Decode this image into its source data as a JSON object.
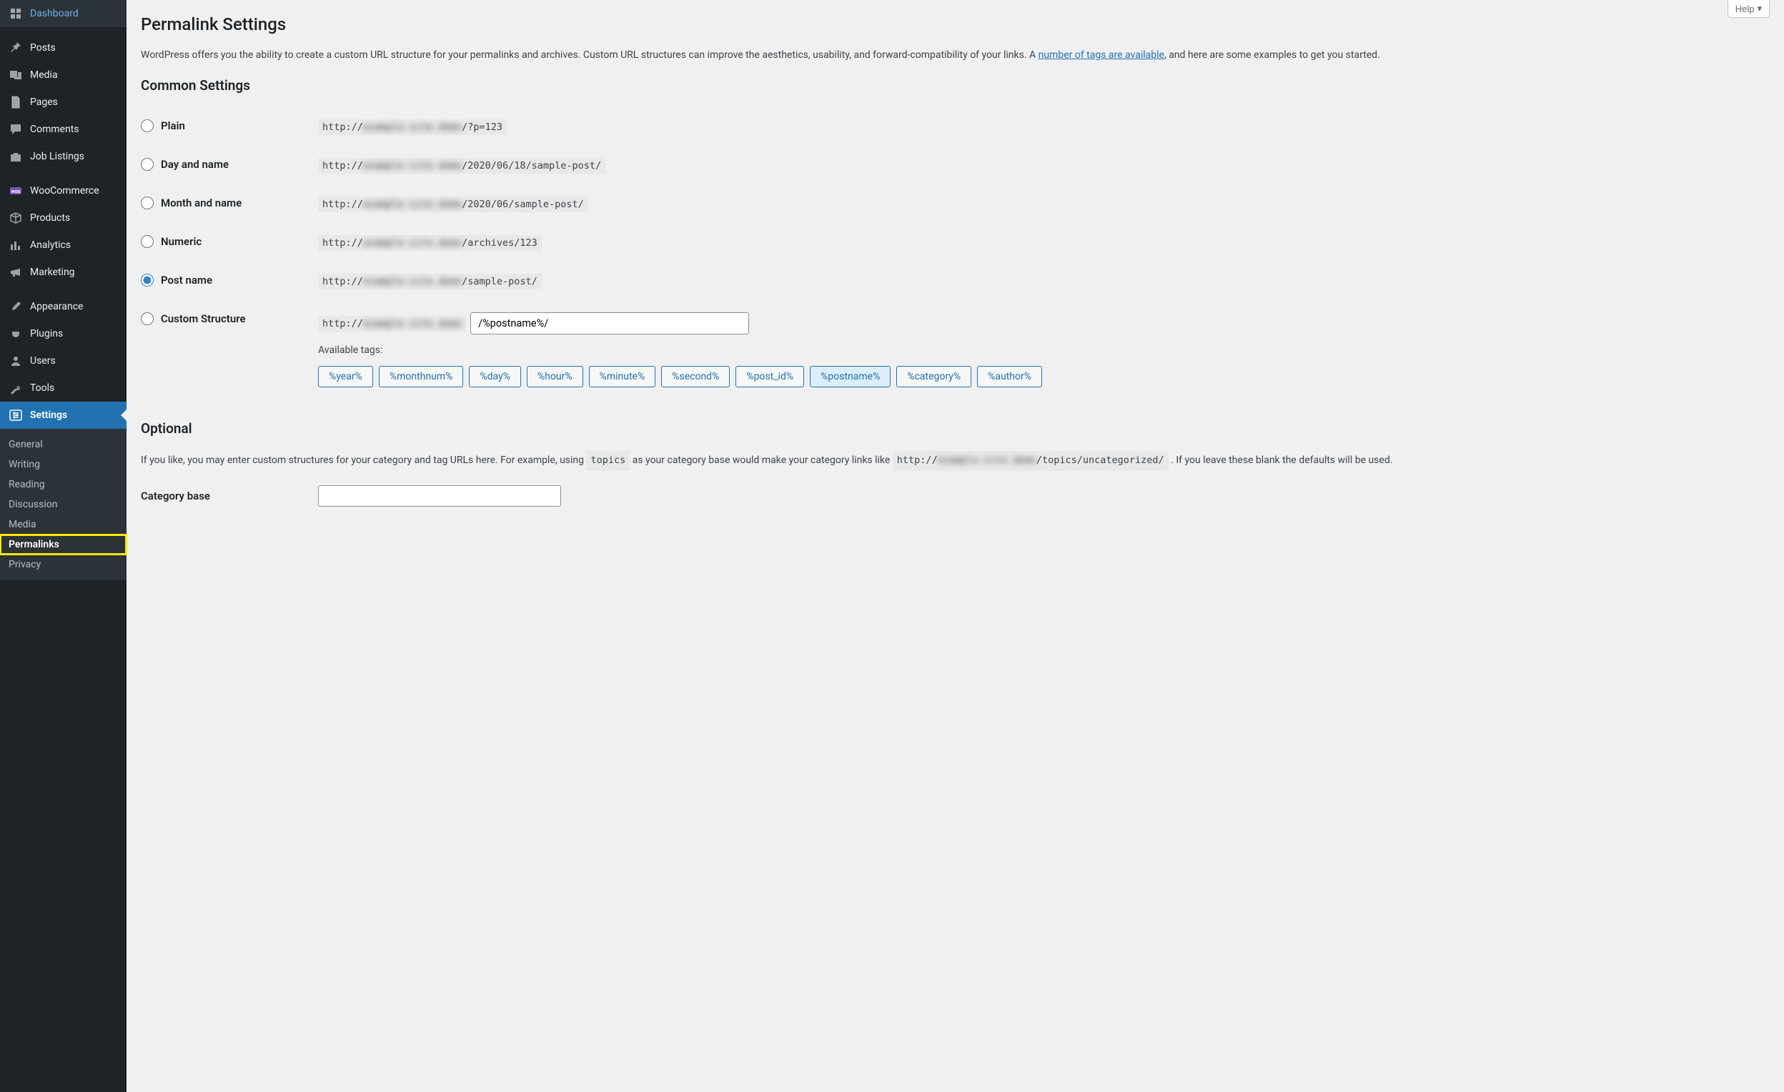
{
  "help_label": "Help",
  "page_title": "Permalink Settings",
  "intro_before": "WordPress offers you the ability to create a custom URL structure for your permalinks and archives. Custom URL structures can improve the aesthetics, usability, and forward-compatibility of your links. A ",
  "intro_link": "number of tags are available",
  "intro_after": ", and here are some examples to get you started.",
  "common_heading": "Common Settings",
  "domain_masked": "example-site.demo",
  "options": {
    "plain": {
      "label": "Plain",
      "suffix": "/?p=123"
    },
    "dayname": {
      "label": "Day and name",
      "suffix": "/2020/06/18/sample-post/"
    },
    "monthname": {
      "label": "Month and name",
      "suffix": "/2020/06/sample-post/"
    },
    "numeric": {
      "label": "Numeric",
      "suffix": "/archives/123"
    },
    "postname": {
      "label": "Post name",
      "suffix": "/sample-post/"
    },
    "custom": {
      "label": "Custom Structure"
    }
  },
  "selected": "postname",
  "custom_value": "/%postname%/",
  "available_label": "Available tags:",
  "tags": [
    "%year%",
    "%monthnum%",
    "%day%",
    "%hour%",
    "%minute%",
    "%second%",
    "%post_id%",
    "%postname%",
    "%category%",
    "%author%"
  ],
  "active_tag": "%postname%",
  "optional_heading": "Optional",
  "optional_before": "If you like, you may enter custom structures for your category and tag URLs here. For example, using ",
  "optional_code1": "topics",
  "optional_middle": " as your category base would make your category links like ",
  "optional_code2_prefix": "http://",
  "optional_code2_suffix": "/topics/uncategorized/",
  "optional_after": " . If you leave these blank the defaults will be used.",
  "category_base_label": "Category base",
  "sidebar": [
    {
      "key": "dashboard",
      "label": "Dashboard",
      "icon": "dashboard"
    },
    {
      "sep": true
    },
    {
      "key": "posts",
      "label": "Posts",
      "icon": "pin"
    },
    {
      "key": "media",
      "label": "Media",
      "icon": "media"
    },
    {
      "key": "pages",
      "label": "Pages",
      "icon": "page"
    },
    {
      "key": "comments",
      "label": "Comments",
      "icon": "comment"
    },
    {
      "key": "joblistings",
      "label": "Job Listings",
      "icon": "briefcase"
    },
    {
      "sep": true
    },
    {
      "key": "woocommerce",
      "label": "WooCommerce",
      "icon": "woo"
    },
    {
      "key": "products",
      "label": "Products",
      "icon": "box"
    },
    {
      "key": "analytics",
      "label": "Analytics",
      "icon": "bars"
    },
    {
      "key": "marketing",
      "label": "Marketing",
      "icon": "megaphone"
    },
    {
      "sep": true
    },
    {
      "key": "appearance",
      "label": "Appearance",
      "icon": "brush"
    },
    {
      "key": "plugins",
      "label": "Plugins",
      "icon": "plug"
    },
    {
      "key": "users",
      "label": "Users",
      "icon": "user"
    },
    {
      "key": "tools",
      "label": "Tools",
      "icon": "wrench"
    },
    {
      "key": "settings",
      "label": "Settings",
      "icon": "sliders",
      "current": true
    }
  ],
  "submenu": [
    {
      "key": "general",
      "label": "General"
    },
    {
      "key": "writing",
      "label": "Writing"
    },
    {
      "key": "reading",
      "label": "Reading"
    },
    {
      "key": "discussion",
      "label": "Discussion"
    },
    {
      "key": "media",
      "label": "Media"
    },
    {
      "key": "permalinks",
      "label": "Permalinks",
      "current": true,
      "highlighted": true
    },
    {
      "key": "privacy",
      "label": "Privacy"
    }
  ]
}
